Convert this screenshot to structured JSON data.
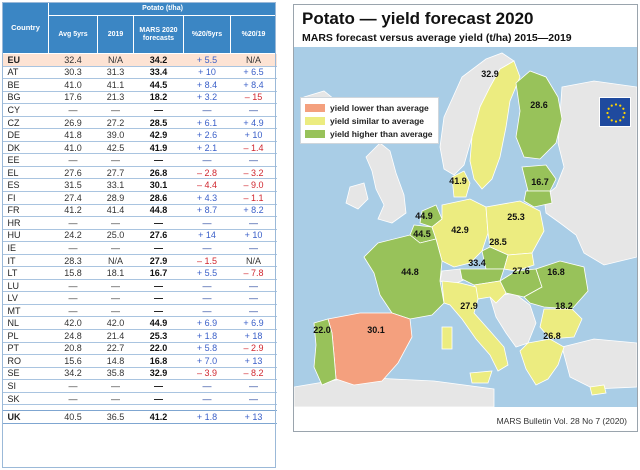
{
  "table": {
    "header_group": "Potato (t/ha)",
    "col_country": "Country",
    "col_avg": "Avg 5yrs",
    "col_2019": "2019",
    "col_mars": "MARS 2020 forecasts",
    "col_pct5": "%20/5yrs",
    "col_pct19": "%20/19",
    "rows": [
      {
        "c": "EU",
        "avg": "32.4",
        "y19": "N/A",
        "mars": "34.2",
        "p5": "+ 5.5",
        "p19": "N/A"
      },
      {
        "c": "AT",
        "avg": "30.3",
        "y19": "31.3",
        "mars": "33.4",
        "p5": "+ 10",
        "p19": "+ 6.5"
      },
      {
        "c": "BE",
        "avg": "41.0",
        "y19": "41.1",
        "mars": "44.5",
        "p5": "+ 8.4",
        "p19": "+ 8.4"
      },
      {
        "c": "BG",
        "avg": "17.6",
        "y19": "21.3",
        "mars": "18.2",
        "p5": "+ 3.2",
        "p19": "– 15"
      },
      {
        "c": "CY",
        "avg": "—",
        "y19": "—",
        "mars": "—",
        "p5": "—",
        "p19": "—"
      },
      {
        "c": "CZ",
        "avg": "26.9",
        "y19": "27.2",
        "mars": "28.5",
        "p5": "+ 6.1",
        "p19": "+ 4.9"
      },
      {
        "c": "DE",
        "avg": "41.8",
        "y19": "39.0",
        "mars": "42.9",
        "p5": "+ 2.6",
        "p19": "+ 10"
      },
      {
        "c": "DK",
        "avg": "41.0",
        "y19": "42.5",
        "mars": "41.9",
        "p5": "+ 2.1",
        "p19": "– 1.4"
      },
      {
        "c": "EE",
        "avg": "—",
        "y19": "—",
        "mars": "—",
        "p5": "—",
        "p19": "—"
      },
      {
        "c": "EL",
        "avg": "27.6",
        "y19": "27.7",
        "mars": "26.8",
        "p5": "– 2.8",
        "p19": "– 3.2"
      },
      {
        "c": "ES",
        "avg": "31.5",
        "y19": "33.1",
        "mars": "30.1",
        "p5": "– 4.4",
        "p19": "– 9.0"
      },
      {
        "c": "FI",
        "avg": "27.4",
        "y19": "28.9",
        "mars": "28.6",
        "p5": "+ 4.3",
        "p19": "– 1.1"
      },
      {
        "c": "FR",
        "avg": "41.2",
        "y19": "41.4",
        "mars": "44.8",
        "p5": "+ 8.7",
        "p19": "+ 8.2"
      },
      {
        "c": "HR",
        "avg": "—",
        "y19": "—",
        "mars": "—",
        "p5": "—",
        "p19": "—"
      },
      {
        "c": "HU",
        "avg": "24.2",
        "y19": "25.0",
        "mars": "27.6",
        "p5": "+ 14",
        "p19": "+ 10"
      },
      {
        "c": "IE",
        "avg": "—",
        "y19": "—",
        "mars": "—",
        "p5": "—",
        "p19": "—"
      },
      {
        "c": "IT",
        "avg": "28.3",
        "y19": "N/A",
        "mars": "27.9",
        "p5": "– 1.5",
        "p19": "N/A"
      },
      {
        "c": "LT",
        "avg": "15.8",
        "y19": "18.1",
        "mars": "16.7",
        "p5": "+ 5.5",
        "p19": "– 7.8"
      },
      {
        "c": "LU",
        "avg": "—",
        "y19": "—",
        "mars": "—",
        "p5": "—",
        "p19": "—"
      },
      {
        "c": "LV",
        "avg": "—",
        "y19": "—",
        "mars": "—",
        "p5": "—",
        "p19": "—"
      },
      {
        "c": "MT",
        "avg": "—",
        "y19": "—",
        "mars": "—",
        "p5": "—",
        "p19": "—"
      },
      {
        "c": "NL",
        "avg": "42.0",
        "y19": "42.0",
        "mars": "44.9",
        "p5": "+ 6.9",
        "p19": "+ 6.9"
      },
      {
        "c": "PL",
        "avg": "24.8",
        "y19": "21.4",
        "mars": "25.3",
        "p5": "+ 1.8",
        "p19": "+ 18"
      },
      {
        "c": "PT",
        "avg": "20.8",
        "y19": "22.7",
        "mars": "22.0",
        "p5": "+ 5.8",
        "p19": "– 2.9"
      },
      {
        "c": "RO",
        "avg": "15.6",
        "y19": "14.8",
        "mars": "16.8",
        "p5": "+ 7.0",
        "p19": "+ 13"
      },
      {
        "c": "SE",
        "avg": "34.2",
        "y19": "35.8",
        "mars": "32.9",
        "p5": "– 3.9",
        "p19": "– 8.2"
      },
      {
        "c": "SI",
        "avg": "—",
        "y19": "—",
        "mars": "—",
        "p5": "—",
        "p19": "—"
      },
      {
        "c": "SK",
        "avg": "—",
        "y19": "—",
        "mars": "—",
        "p5": "—",
        "p19": "—"
      }
    ],
    "uk_row": {
      "c": "UK",
      "avg": "40.5",
      "y19": "36.5",
      "mars": "41.2",
      "p5": "+ 1.8",
      "p19": "+ 13"
    }
  },
  "map": {
    "title": "Potato — yield forecast 2020",
    "subtitle": "MARS forecast versus average yield (t/ha) 2015—2019",
    "legend": [
      {
        "label": "yield lower than average",
        "color": "#f4a07e"
      },
      {
        "label": "yield similar to average",
        "color": "#ecec80"
      },
      {
        "label": "yield higher than average",
        "color": "#98c25a"
      }
    ],
    "credit": "MARS Bulletin Vol. 28 No 7 (2020)",
    "colors": {
      "sea": "#a9cde6",
      "non_eu": "#e6e6e6",
      "border": "#ffffff",
      "flag": "#1f4a9e",
      "flag_stars": "#ffd400"
    },
    "labels": {
      "SE": "32.9",
      "FI": "28.6",
      "DK": "41.9",
      "LT": "16.7",
      "NL": "44.9",
      "BE": "44.5",
      "DE": "42.9",
      "PL": "25.3",
      "CZ": "28.5",
      "AT": "33.4",
      "HU": "27.6",
      "RO": "16.8",
      "FR": "44.8",
      "IT": "27.9",
      "BG": "18.2",
      "EL": "26.8",
      "ES": "30.1",
      "PT": "22.0"
    }
  }
}
